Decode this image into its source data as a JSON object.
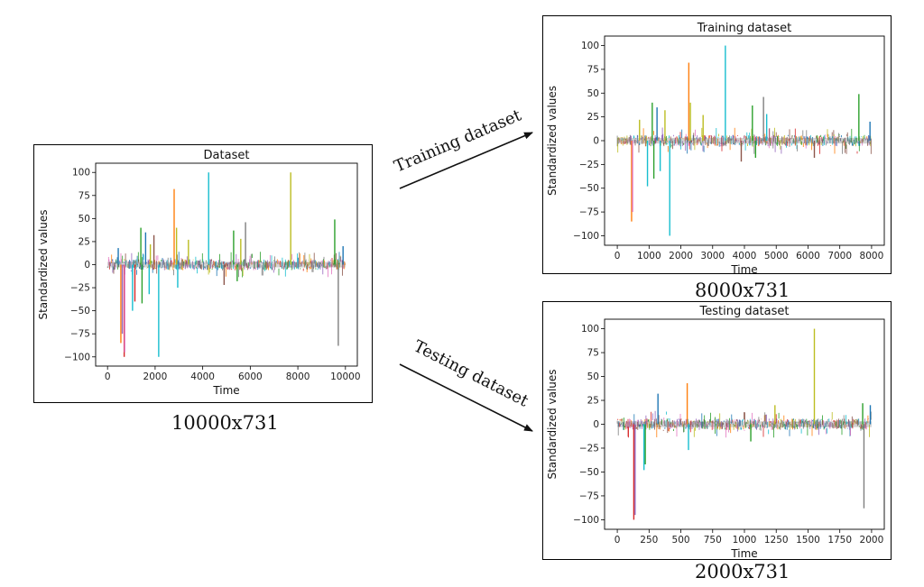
{
  "flow": {
    "train_arrow_label": "Training dataset",
    "test_arrow_label": "Testing dataset"
  },
  "captions": {
    "full": "10000x731",
    "train": "8000x731",
    "test": "2000x731"
  },
  "chart_data": [
    {
      "type": "line",
      "title": "Dataset",
      "xlabel": "Time",
      "ylabel": "Standardized values",
      "xlim": [
        -500,
        10500
      ],
      "ylim": [
        -110,
        110
      ],
      "xticks": [
        0,
        2000,
        4000,
        6000,
        8000,
        10000
      ],
      "yticks": [
        -100,
        -75,
        -50,
        -25,
        0,
        25,
        50,
        75,
        100
      ],
      "n_points": 10000,
      "spikes": [
        {
          "x": 450,
          "y": 18,
          "color": "#1f77b4"
        },
        {
          "x": 560,
          "y": -85,
          "color": "#ff7f0e"
        },
        {
          "x": 620,
          "y": -75,
          "color": "#9467bd"
        },
        {
          "x": 700,
          "y": -100,
          "color": "#d62728"
        },
        {
          "x": 720,
          "y": -95,
          "color": "#e377c2"
        },
        {
          "x": 1050,
          "y": -50,
          "color": "#17becf"
        },
        {
          "x": 1150,
          "y": -40,
          "color": "#d62728"
        },
        {
          "x": 1400,
          "y": 40,
          "color": "#2ca02c"
        },
        {
          "x": 1450,
          "y": -42,
          "color": "#2ca02c"
        },
        {
          "x": 1600,
          "y": 35,
          "color": "#1f77b4"
        },
        {
          "x": 1750,
          "y": -32,
          "color": "#17becf"
        },
        {
          "x": 1800,
          "y": 22,
          "color": "#bcbd22"
        },
        {
          "x": 1950,
          "y": 32,
          "color": "#8c564b"
        },
        {
          "x": 2150,
          "y": -100,
          "color": "#17becf"
        },
        {
          "x": 2800,
          "y": 82,
          "color": "#ff7f0e"
        },
        {
          "x": 2900,
          "y": 40,
          "color": "#bcbd22"
        },
        {
          "x": 2950,
          "y": -25,
          "color": "#17becf"
        },
        {
          "x": 3400,
          "y": 27,
          "color": "#bcbd22"
        },
        {
          "x": 4250,
          "y": 100,
          "color": "#17becf"
        },
        {
          "x": 4900,
          "y": -22,
          "color": "#8c564b"
        },
        {
          "x": 5300,
          "y": 37,
          "color": "#2ca02c"
        },
        {
          "x": 5450,
          "y": -18,
          "color": "#2ca02c"
        },
        {
          "x": 5600,
          "y": 28,
          "color": "#bcbd22"
        },
        {
          "x": 5800,
          "y": 46,
          "color": "#7f7f7f"
        },
        {
          "x": 7700,
          "y": 100,
          "color": "#bcbd22"
        },
        {
          "x": 9550,
          "y": 49,
          "color": "#2ca02c"
        },
        {
          "x": 9700,
          "y": -88,
          "color": "#7f7f7f"
        },
        {
          "x": 9900,
          "y": 20,
          "color": "#1f77b4"
        }
      ]
    },
    {
      "type": "line",
      "title": "Training dataset",
      "xlabel": "Time",
      "ylabel": "Standardized values",
      "xlim": [
        -400,
        8400
      ],
      "ylim": [
        -110,
        110
      ],
      "xticks": [
        0,
        1000,
        2000,
        3000,
        4000,
        5000,
        6000,
        7000,
        8000
      ],
      "yticks": [
        -100,
        -75,
        -50,
        -25,
        0,
        25,
        50,
        75,
        100
      ],
      "n_points": 8000,
      "spikes": [
        {
          "x": 450,
          "y": -85,
          "color": "#ff7f0e"
        },
        {
          "x": 480,
          "y": -75,
          "color": "#e377c2"
        },
        {
          "x": 700,
          "y": 22,
          "color": "#bcbd22"
        },
        {
          "x": 950,
          "y": -48,
          "color": "#17becf"
        },
        {
          "x": 1100,
          "y": 40,
          "color": "#2ca02c"
        },
        {
          "x": 1150,
          "y": -40,
          "color": "#2ca02c"
        },
        {
          "x": 1250,
          "y": 35,
          "color": "#1f77b4"
        },
        {
          "x": 1350,
          "y": -32,
          "color": "#17becf"
        },
        {
          "x": 1500,
          "y": 32,
          "color": "#bcbd22"
        },
        {
          "x": 1650,
          "y": -100,
          "color": "#17becf"
        },
        {
          "x": 2250,
          "y": 82,
          "color": "#ff7f0e"
        },
        {
          "x": 2300,
          "y": 40,
          "color": "#bcbd22"
        },
        {
          "x": 2700,
          "y": 27,
          "color": "#bcbd22"
        },
        {
          "x": 3400,
          "y": 100,
          "color": "#17becf"
        },
        {
          "x": 3900,
          "y": -22,
          "color": "#8c564b"
        },
        {
          "x": 4250,
          "y": 37,
          "color": "#2ca02c"
        },
        {
          "x": 4350,
          "y": -18,
          "color": "#2ca02c"
        },
        {
          "x": 4600,
          "y": 46,
          "color": "#7f7f7f"
        },
        {
          "x": 4700,
          "y": 28,
          "color": "#17becf"
        },
        {
          "x": 6200,
          "y": -18,
          "color": "#8c564b"
        },
        {
          "x": 7600,
          "y": 49,
          "color": "#2ca02c"
        },
        {
          "x": 7950,
          "y": 20,
          "color": "#1f77b4"
        }
      ]
    },
    {
      "type": "line",
      "title": "Testing dataset",
      "xlabel": "Time",
      "ylabel": "Standardized values",
      "xlim": [
        -100,
        2100
      ],
      "ylim": [
        -110,
        110
      ],
      "xticks": [
        0,
        250,
        500,
        750,
        1000,
        1250,
        1500,
        1750,
        2000
      ],
      "yticks": [
        -100,
        -75,
        -50,
        -25,
        0,
        25,
        50,
        75,
        100
      ],
      "n_points": 2000,
      "spikes": [
        {
          "x": 130,
          "y": -100,
          "color": "#d62728"
        },
        {
          "x": 140,
          "y": -95,
          "color": "#9467bd"
        },
        {
          "x": 210,
          "y": -48,
          "color": "#17becf"
        },
        {
          "x": 220,
          "y": -42,
          "color": "#2ca02c"
        },
        {
          "x": 320,
          "y": 32,
          "color": "#1f77b4"
        },
        {
          "x": 550,
          "y": 43,
          "color": "#ff7f0e"
        },
        {
          "x": 560,
          "y": -27,
          "color": "#17becf"
        },
        {
          "x": 1050,
          "y": -18,
          "color": "#2ca02c"
        },
        {
          "x": 1240,
          "y": 20,
          "color": "#bcbd22"
        },
        {
          "x": 1550,
          "y": 100,
          "color": "#bcbd22"
        },
        {
          "x": 1930,
          "y": 22,
          "color": "#2ca02c"
        },
        {
          "x": 1940,
          "y": -88,
          "color": "#7f7f7f"
        },
        {
          "x": 1990,
          "y": 20,
          "color": "#1f77b4"
        }
      ]
    }
  ],
  "palette": [
    "#1f77b4",
    "#ff7f0e",
    "#2ca02c",
    "#d62728",
    "#9467bd",
    "#8c564b",
    "#e377c2",
    "#7f7f7f",
    "#bcbd22",
    "#17becf"
  ]
}
